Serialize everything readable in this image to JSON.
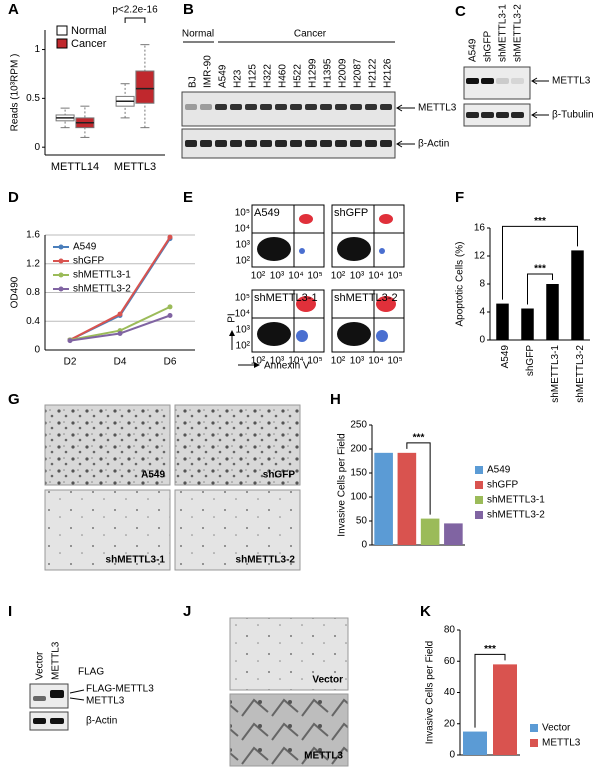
{
  "panel_labels": [
    "A",
    "B",
    "C",
    "D",
    "E",
    "F",
    "G",
    "H",
    "I",
    "J",
    "K"
  ],
  "blot_B": {
    "groups": [
      "Normal",
      "Cancer"
    ],
    "lanes": [
      "BJ",
      "IMR-90",
      "A549",
      "H23",
      "H125",
      "H322",
      "H460",
      "H522",
      "H1299",
      "H1395",
      "H2009",
      "H2087",
      "H2122",
      "H2126"
    ],
    "bands": [
      "METTL3",
      "β-Actin"
    ]
  },
  "blot_C": {
    "lanes": [
      "A549",
      "shGFP",
      "shMETTL3-1",
      "shMETTL3-2"
    ],
    "bands": [
      "METTL3",
      "β-Tubulin"
    ]
  },
  "blot_I": {
    "lanes": [
      "Vector",
      "METTL3"
    ],
    "antibody": "FLAG",
    "bands": [
      "FLAG-METTL3",
      "METTL3",
      "β-Actin"
    ]
  },
  "flow_E": {
    "samples": [
      "A549",
      "shGFP",
      "shMETTL3-1",
      "shMETTL3-2"
    ],
    "ticks": [
      "10²",
      "10³",
      "10⁴",
      "10⁵"
    ],
    "y_label": "PI",
    "x_label": "Annexin V"
  },
  "images_G": {
    "labels": [
      "A549",
      "shGFP",
      "shMETTL3-1",
      "shMETTL3-2"
    ]
  },
  "images_J": {
    "labels": [
      "Vector",
      "METTL3"
    ]
  },
  "chart_data": [
    {
      "type": "box",
      "ylabel": "Reads (10³RPM )",
      "annotation": "p<2.2e-16",
      "categories": [
        "METTL14",
        "METTL3"
      ],
      "series": [
        {
          "name": "Normal",
          "color": "#ffffff",
          "min": [
            0.2,
            0.3
          ],
          "q1": [
            0.27,
            0.42
          ],
          "median": [
            0.3,
            0.47
          ],
          "q3": [
            0.33,
            0.52
          ],
          "max": [
            0.4,
            0.65
          ]
        },
        {
          "name": "Cancer",
          "color": "#c0282d",
          "min": [
            0.1,
            0.2
          ],
          "q1": [
            0.2,
            0.45
          ],
          "median": [
            0.25,
            0.6
          ],
          "q3": [
            0.3,
            0.78
          ],
          "max": [
            0.42,
            1.05
          ]
        }
      ],
      "ylim": [
        -0.08,
        1.2
      ],
      "yticks": [
        0,
        0.5,
        1
      ]
    },
    {
      "type": "line",
      "ylabel": "OD490",
      "categories": [
        "D2",
        "D4",
        "D6"
      ],
      "series": [
        {
          "name": "A549",
          "color": "#4a7ebb",
          "values": [
            0.14,
            0.48,
            1.55
          ]
        },
        {
          "name": "shGFP",
          "color": "#d9534f",
          "values": [
            0.14,
            0.5,
            1.57
          ]
        },
        {
          "name": "shMETTL3-1",
          "color": "#9bbb59",
          "values": [
            0.14,
            0.27,
            0.6
          ]
        },
        {
          "name": "shMETTL3-2",
          "color": "#8064a2",
          "values": [
            0.13,
            0.23,
            0.48
          ]
        }
      ],
      "ylim": [
        0,
        1.6
      ],
      "yticks": [
        0,
        0.4,
        0.8,
        1.2,
        1.6
      ],
      "grid": true
    },
    {
      "type": "bar",
      "ylabel": "Apoptotic Cells (%)",
      "categories": [
        "A549",
        "shGFP",
        "shMETTL3-1",
        "shMETTL3-2"
      ],
      "values": [
        5.2,
        4.5,
        8,
        12.8
      ],
      "color": "#000000",
      "ylim": [
        0,
        16
      ],
      "yticks": [
        0,
        4,
        8,
        12,
        16
      ],
      "annotations": [
        "***",
        "***"
      ]
    },
    {
      "type": "bar",
      "ylabel": "Invasive Cells per Field",
      "categories": [
        "A549",
        "shGFP",
        "shMETTL3-1",
        "shMETTL3-2"
      ],
      "values": [
        192,
        192,
        55,
        45
      ],
      "colors": [
        "#5b9bd5",
        "#d9534f",
        "#9bbb59",
        "#8064a2"
      ],
      "legend": true,
      "ylim": [
        0,
        250
      ],
      "yticks": [
        0,
        50,
        100,
        150,
        200,
        250
      ],
      "annotations": [
        "***"
      ]
    },
    {
      "type": "bar",
      "ylabel": "Invasive Cells per Field",
      "categories": [
        "Vector",
        "METTL3"
      ],
      "values": [
        15,
        58
      ],
      "colors": [
        "#5b9bd5",
        "#d9534f"
      ],
      "legend": true,
      "ylim": [
        0,
        80
      ],
      "yticks": [
        0,
        20,
        40,
        60,
        80
      ],
      "annotations": [
        "***"
      ]
    }
  ]
}
